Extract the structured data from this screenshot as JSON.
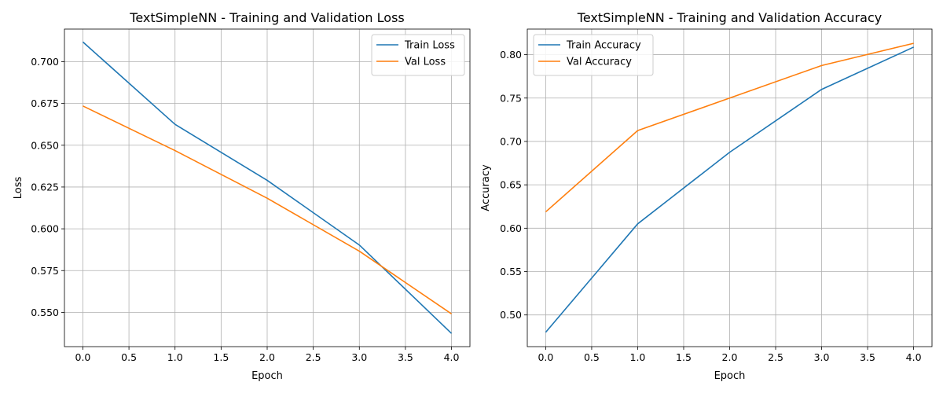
{
  "chart_data": [
    {
      "type": "line",
      "title": "TextSimpleNN - Training and Validation Loss",
      "xlabel": "Epoch",
      "ylabel": "Loss",
      "xlim": [
        -0.2,
        4.2
      ],
      "ylim": [
        0.5295,
        0.7195
      ],
      "xticks": [
        0.0,
        0.5,
        1.0,
        1.5,
        2.0,
        2.5,
        3.0,
        3.5,
        4.0
      ],
      "xtick_labels": [
        "0.0",
        "0.5",
        "1.0",
        "1.5",
        "2.0",
        "2.5",
        "3.0",
        "3.5",
        "4.0"
      ],
      "yticks": [
        0.55,
        0.575,
        0.6,
        0.625,
        0.65,
        0.675,
        0.7
      ],
      "ytick_labels": [
        "0.550",
        "0.575",
        "0.600",
        "0.625",
        "0.650",
        "0.675",
        "0.700"
      ],
      "grid": true,
      "legend_position": "top-right",
      "x": [
        0,
        1,
        2,
        3,
        4
      ],
      "series": [
        {
          "name": "Train Loss",
          "color": "#1f77b4",
          "values": [
            0.7118,
            0.6625,
            0.629,
            0.5903,
            0.5374
          ]
        },
        {
          "name": "Val Loss",
          "color": "#ff7f0e",
          "values": [
            0.6735,
            0.6468,
            0.6183,
            0.5866,
            0.5491
          ]
        }
      ]
    },
    {
      "type": "line",
      "title": "TextSimpleNN - Training and Validation Accuracy",
      "xlabel": "Epoch",
      "ylabel": "Accuracy",
      "xlim": [
        -0.2,
        4.2
      ],
      "ylim": [
        0.4635,
        0.8295
      ],
      "xticks": [
        0.0,
        0.5,
        1.0,
        1.5,
        2.0,
        2.5,
        3.0,
        3.5,
        4.0
      ],
      "xtick_labels": [
        "0.0",
        "0.5",
        "1.0",
        "1.5",
        "2.0",
        "2.5",
        "3.0",
        "3.5",
        "4.0"
      ],
      "yticks": [
        0.5,
        0.55,
        0.6,
        0.65,
        0.7,
        0.75,
        0.8
      ],
      "ytick_labels": [
        "0.50",
        "0.55",
        "0.60",
        "0.65",
        "0.70",
        "0.75",
        "0.80"
      ],
      "grid": true,
      "legend_position": "top-left",
      "x": [
        0,
        1,
        2,
        3,
        4
      ],
      "series": [
        {
          "name": "Train Accuracy",
          "color": "#1f77b4",
          "values": [
            0.48,
            0.605,
            0.6875,
            0.76,
            0.8087
          ]
        },
        {
          "name": "Val Accuracy",
          "color": "#ff7f0e",
          "values": [
            0.6188,
            0.7125,
            0.75,
            0.7875,
            0.8131
          ]
        }
      ]
    }
  ]
}
